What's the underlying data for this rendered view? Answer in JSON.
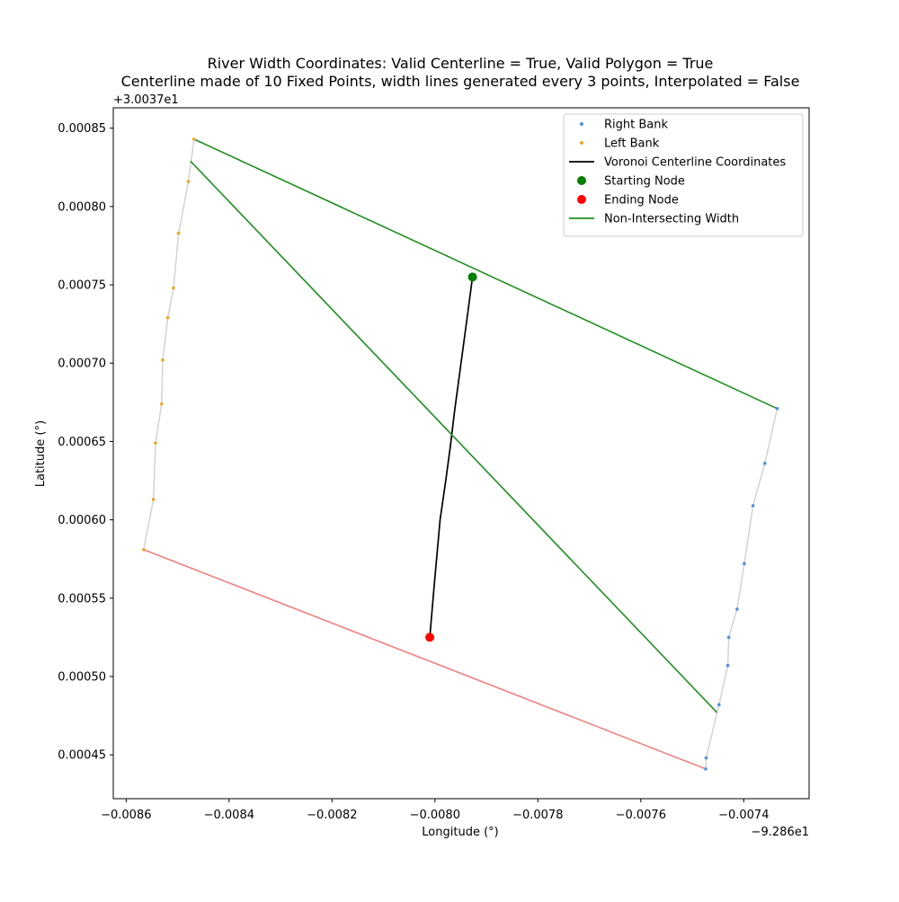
{
  "chart_data": {
    "type": "line",
    "title": "River Width Coordinates: Valid Centerline = True, Valid Polygon = True",
    "subtitle": "Centerline made of 10 Fixed Points, width lines generated every 3 points, Interpolated = False",
    "x_label": "Longitude (°)",
    "y_label": "Latitude (°)",
    "x_offset": "−9.286e1",
    "y_offset": "+3.0037e1",
    "xlim": [
      -0.008625,
      -0.007273
    ],
    "ylim": [
      0.000422,
      0.000863
    ],
    "xticks": [
      {
        "value": -0.0086,
        "label": "−0.0086"
      },
      {
        "value": -0.0084,
        "label": "−0.0084"
      },
      {
        "value": -0.0082,
        "label": "−0.0082"
      },
      {
        "value": -0.008,
        "label": "−0.0080"
      },
      {
        "value": -0.0078,
        "label": "−0.0078"
      },
      {
        "value": -0.0076,
        "label": "−0.0076"
      },
      {
        "value": -0.0074,
        "label": "−0.0074"
      }
    ],
    "yticks": [
      {
        "value": 0.00045,
        "label": "0.00045"
      },
      {
        "value": 0.0005,
        "label": "0.00050"
      },
      {
        "value": 0.00055,
        "label": "0.00055"
      },
      {
        "value": 0.0006,
        "label": "0.00060"
      },
      {
        "value": 0.00065,
        "label": "0.00065"
      },
      {
        "value": 0.0007,
        "label": "0.00070"
      },
      {
        "value": 0.00075,
        "label": "0.00075"
      },
      {
        "value": 0.0008,
        "label": "0.00080"
      },
      {
        "value": 0.00085,
        "label": "0.00085"
      }
    ],
    "grid": false,
    "legend": "upper right",
    "series": [
      {
        "name": "Right Bank",
        "style": "scatter",
        "marker": "small",
        "color": "#4a90e2",
        "line_color": "#d3d3d3",
        "x": [
          -0.007335,
          -0.007359,
          -0.007382,
          -0.007399,
          -0.007413,
          -0.007429,
          -0.007431,
          -0.007448,
          -0.007473,
          -0.007474
        ],
        "y": [
          0.000671,
          0.000636,
          0.000609,
          0.000572,
          0.000543,
          0.000525,
          0.000507,
          0.000482,
          0.000448,
          0.000441
        ]
      },
      {
        "name": "Left Bank",
        "style": "scatter",
        "marker": "small",
        "color": "#f5a623",
        "line_color": "#d3d3d3",
        "x": [
          -0.008468,
          -0.008479,
          -0.008498,
          -0.008508,
          -0.008519,
          -0.008529,
          -0.008531,
          -0.008543,
          -0.008547,
          -0.008566
        ],
        "y": [
          0.000843,
          0.000816,
          0.000783,
          0.000748,
          0.000729,
          0.000702,
          0.000674,
          0.000649,
          0.000613,
          0.000581
        ]
      },
      {
        "name": "Voronoi Centerline Coordinates",
        "style": "line",
        "color": "#000000",
        "x": [
          -0.007927,
          -0.007935,
          -0.007944,
          -0.007953,
          -0.007962,
          -0.00797,
          -0.007979,
          -0.00799,
          -0.008002,
          -0.00801
        ],
        "y": [
          0.000755,
          0.000735,
          0.000713,
          0.000691,
          0.000669,
          0.000647,
          0.000625,
          0.0006,
          0.000556,
          0.000525
        ]
      },
      {
        "name": "Starting Node",
        "style": "scatter",
        "marker": "large",
        "color": "#008000",
        "x": [
          -0.007927
        ],
        "y": [
          0.000755
        ]
      },
      {
        "name": "Ending Node",
        "style": "scatter",
        "marker": "large",
        "color": "#ff0000",
        "x": [
          -0.00801
        ],
        "y": [
          0.000525
        ]
      },
      {
        "name": "Non-Intersecting Width",
        "style": "line",
        "color": "#1f8f1f",
        "x": [
          -0.008468,
          -0.007335,
          null,
          -0.008475,
          -0.007452
        ],
        "y": [
          0.000843,
          0.000671,
          null,
          0.000829,
          0.000477
        ]
      },
      {
        "style": "line",
        "color": "#f08080",
        "x": [
          -0.008566,
          -0.007474
        ],
        "y": [
          0.000581,
          0.000441
        ]
      }
    ]
  }
}
